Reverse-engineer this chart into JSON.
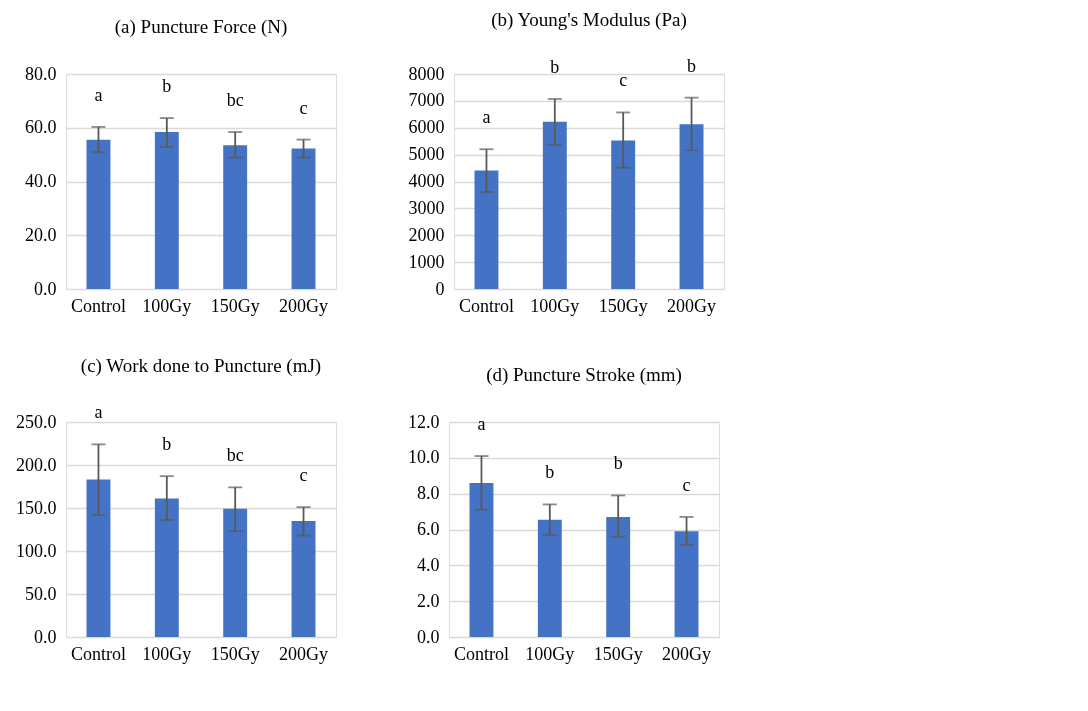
{
  "chart_data": [
    {
      "type": "bar",
      "title": "(a) Puncture Force (N)",
      "categories": [
        "Control",
        "100Gy",
        "150Gy",
        "200Gy"
      ],
      "values": [
        55.5,
        58.4,
        53.5,
        52.3
      ],
      "errors": [
        [
          50.9,
          60.3
        ],
        [
          52.9,
          63.6
        ],
        [
          48.9,
          58.4
        ],
        [
          48.9,
          55.6
        ]
      ],
      "color": "#4472c4",
      "ylim": [
        0,
        80
      ],
      "yticks": [
        {
          "value": 0,
          "label": "0.0"
        },
        {
          "value": 20,
          "label": "20.0"
        },
        {
          "value": 40,
          "label": "40.0"
        },
        {
          "value": 60,
          "label": "60.0"
        },
        {
          "value": 80,
          "label": "80.0"
        }
      ],
      "grid": "y",
      "annotations": [
        "a",
        "b",
        "bc",
        "c"
      ]
    },
    {
      "type": "bar",
      "title": "(b) Young's Modulus (Pa)",
      "categories": [
        "Control",
        "100Gy",
        "150Gy",
        "200Gy"
      ],
      "values": [
        4410,
        6220,
        5530,
        6130
      ],
      "errors": [
        [
          3610,
          5200
        ],
        [
          5360,
          7070
        ],
        [
          4510,
          6570
        ],
        [
          5160,
          7120
        ]
      ],
      "color": "#4472c4",
      "ylim": [
        0,
        8000
      ],
      "yticks": [
        0,
        1000,
        2000,
        3000,
        4000,
        5000,
        6000,
        7000,
        8000
      ],
      "grid": "y",
      "annotations": [
        "a",
        "b",
        "c",
        "b"
      ]
    },
    {
      "type": "bar",
      "title": "(c) Work done to Puncture (mJ)",
      "categories": [
        "Control",
        "100Gy",
        "150Gy",
        "200Gy"
      ],
      "values": [
        183,
        161,
        149,
        135
      ],
      "errors": [
        [
          142,
          224
        ],
        [
          136,
          187
        ],
        [
          123,
          174
        ],
        [
          118,
          151
        ]
      ],
      "color": "#4472c4",
      "ylim": [
        0,
        250
      ],
      "yticks": [
        {
          "value": 0,
          "label": "0.0"
        },
        {
          "value": 50,
          "label": "50.0"
        },
        {
          "value": 100,
          "label": "100.0"
        },
        {
          "value": 150,
          "label": "150.0"
        },
        {
          "value": 200,
          "label": "200.0"
        },
        {
          "value": 250,
          "label": "250.0"
        }
      ],
      "grid": "y",
      "annotations": [
        "a",
        "b",
        "bc",
        "c"
      ]
    },
    {
      "type": "bar",
      "title": "(d) Puncture Stroke (mm)",
      "categories": [
        "Control",
        "100Gy",
        "150Gy",
        "200Gy"
      ],
      "values": [
        8.6,
        6.55,
        6.7,
        5.9
      ],
      "errors": [
        [
          7.1,
          10.1
        ],
        [
          5.7,
          7.4
        ],
        [
          5.6,
          7.9
        ],
        [
          5.15,
          6.7
        ]
      ],
      "color": "#4472c4",
      "ylim": [
        0,
        12
      ],
      "yticks": [
        {
          "value": 0,
          "label": "0.0"
        },
        {
          "value": 2,
          "label": "2.0"
        },
        {
          "value": 4,
          "label": "4.0"
        },
        {
          "value": 6,
          "label": "6.0"
        },
        {
          "value": 8,
          "label": "8.0"
        },
        {
          "value": 10,
          "label": "10.0"
        },
        {
          "value": 12,
          "label": "12.0"
        }
      ],
      "grid": "y",
      "annotations": [
        "a",
        "b",
        "b",
        "c"
      ]
    }
  ]
}
